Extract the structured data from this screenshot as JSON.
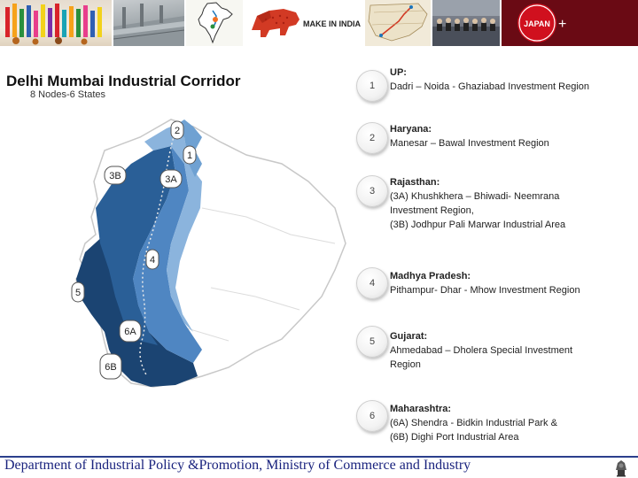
{
  "header": {
    "banner_tiles": [
      "colorful-textiles-photo",
      "industrial-plant-photo",
      "india-map-illustration",
      "make-in-india-logo",
      "dmic-route-map",
      "conference-meeting-photo",
      "japan-flag-logo"
    ],
    "make_in_india_text": "MAKE IN INDIA",
    "japan_text": "JAPAN"
  },
  "title": "Delhi Mumbai Industrial Corridor",
  "subtitle": "8 Nodes-6 States",
  "map": {
    "markers": [
      "2",
      "1",
      "3B",
      "3A",
      "4",
      "5",
      "6A",
      "6B"
    ]
  },
  "items": [
    {
      "num": "1",
      "state": "UP:",
      "lines": [
        "Dadri – Noida - Ghaziabad Investment Region"
      ]
    },
    {
      "num": "2",
      "state": "Haryana:",
      "lines": [
        "Manesar – Bawal Investment Region"
      ]
    },
    {
      "num": "3",
      "state": "Rajasthan:",
      "lines": [
        "(3A) Khushkhera – Bhiwadi- Neemrana",
        "Investment Region,",
        "(3B) Jodhpur Pali Marwar Industrial Area"
      ]
    },
    {
      "num": "4",
      "state": "Madhya Pradesh:",
      "lines": [
        "Pithampur- Dhar - Mhow Investment Region"
      ]
    },
    {
      "num": "5",
      "state": "Gujarat:",
      "lines": [
        "Ahmedabad – Dholera Special Investment",
        "Region"
      ]
    },
    {
      "num": "6",
      "state": "Maharashtra:",
      "lines": [
        "(6A) Shendra - Bidkin Industrial Park &",
        "(6B) Dighi Port Industrial Area"
      ]
    }
  ],
  "footer": {
    "text": "Department of Industrial Policy &Promotion, Ministry of Commerce and Industry",
    "emblem": "national-emblem-icon"
  },
  "colors": {
    "light_blue": "#8bb4dd",
    "mid_blue": "#4f86c2",
    "dark_blue": "#2a5f97",
    "darkest_blue": "#1b4472",
    "outline": "#c8c8c8",
    "footer_blue": "#1a237e",
    "japan_red": "#6a0a14"
  }
}
